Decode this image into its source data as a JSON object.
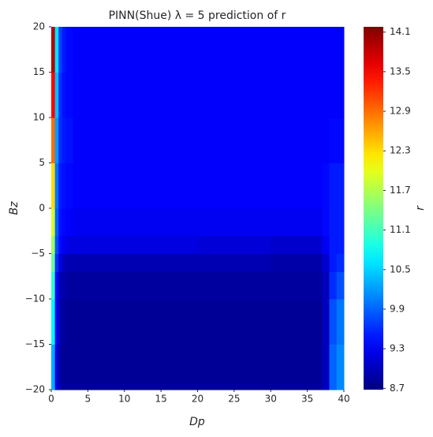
{
  "chart_data": {
    "type": "heatmap",
    "title": "PINN(Shue) λ = 5 prediction of r",
    "x_label": "Dp",
    "y_label": "Bz",
    "colorbar_label": "r",
    "colormap": "jet",
    "xbins": [
      0,
      0.5,
      1,
      1.5,
      2,
      3,
      5,
      10,
      15,
      20,
      25,
      30,
      35,
      37,
      38,
      39,
      40
    ],
    "ybins": [
      -20,
      -15,
      -10,
      -7,
      -5,
      -3,
      0,
      5,
      10,
      15,
      20
    ],
    "z": [
      [
        10.3,
        9.2,
        8.85,
        8.8,
        8.8,
        8.8,
        8.8,
        8.8,
        8.8,
        8.8,
        8.8,
        8.8,
        8.8,
        9.0,
        9.9,
        10.1
      ],
      [
        10.7,
        9.3,
        8.9,
        8.85,
        8.8,
        8.8,
        8.8,
        8.8,
        8.8,
        8.8,
        8.8,
        8.8,
        8.8,
        9.0,
        9.8,
        10.0
      ],
      [
        11.0,
        9.4,
        8.95,
        8.9,
        8.85,
        8.85,
        8.85,
        8.85,
        8.85,
        8.85,
        8.85,
        8.85,
        8.85,
        9.0,
        9.6,
        9.8
      ],
      [
        11.3,
        9.6,
        9.2,
        9.0,
        8.95,
        8.95,
        8.95,
        8.95,
        8.95,
        8.95,
        8.95,
        8.9,
        8.9,
        9.1,
        9.5,
        9.6
      ],
      [
        11.6,
        9.8,
        9.4,
        9.3,
        9.2,
        9.2,
        9.2,
        9.2,
        9.2,
        9.15,
        9.15,
        9.1,
        9.1,
        9.3,
        9.5,
        9.5
      ],
      [
        11.9,
        9.9,
        9.45,
        9.4,
        9.35,
        9.3,
        9.3,
        9.3,
        9.3,
        9.3,
        9.3,
        9.3,
        9.3,
        9.4,
        9.5,
        9.5
      ],
      [
        12.3,
        10.0,
        9.5,
        9.45,
        9.4,
        9.35,
        9.35,
        9.35,
        9.35,
        9.35,
        9.35,
        9.35,
        9.35,
        9.4,
        9.5,
        9.5
      ],
      [
        12.9,
        10.2,
        9.6,
        9.5,
        9.45,
        9.35,
        9.35,
        9.35,
        9.35,
        9.35,
        9.35,
        9.35,
        9.35,
        9.35,
        9.4,
        9.4
      ],
      [
        13.5,
        10.4,
        9.6,
        9.45,
        9.4,
        9.35,
        9.35,
        9.35,
        9.35,
        9.35,
        9.35,
        9.35,
        9.35,
        9.35,
        9.35,
        9.35
      ],
      [
        13.9,
        10.6,
        9.7,
        9.5,
        9.4,
        9.35,
        9.35,
        9.35,
        9.35,
        9.35,
        9.35,
        9.35,
        9.35,
        9.35,
        9.35,
        9.35
      ]
    ],
    "xlim": [
      0,
      40
    ],
    "xticks": [
      0,
      5,
      10,
      15,
      20,
      25,
      30,
      35,
      40
    ],
    "ylim": [
      -20,
      20
    ],
    "yticks": [
      {
        "value": -20,
        "label": "−20"
      },
      {
        "value": -15,
        "label": "−15"
      },
      {
        "value": -10,
        "label": "−10"
      },
      {
        "value": -5,
        "label": "−5"
      },
      0,
      5,
      10,
      15,
      20
    ],
    "zlim": [
      8.68,
      14.18
    ],
    "zticks": [
      8.7,
      9.3,
      9.9,
      10.5,
      11.1,
      11.7,
      12.3,
      12.9,
      13.5,
      14.1
    ]
  }
}
